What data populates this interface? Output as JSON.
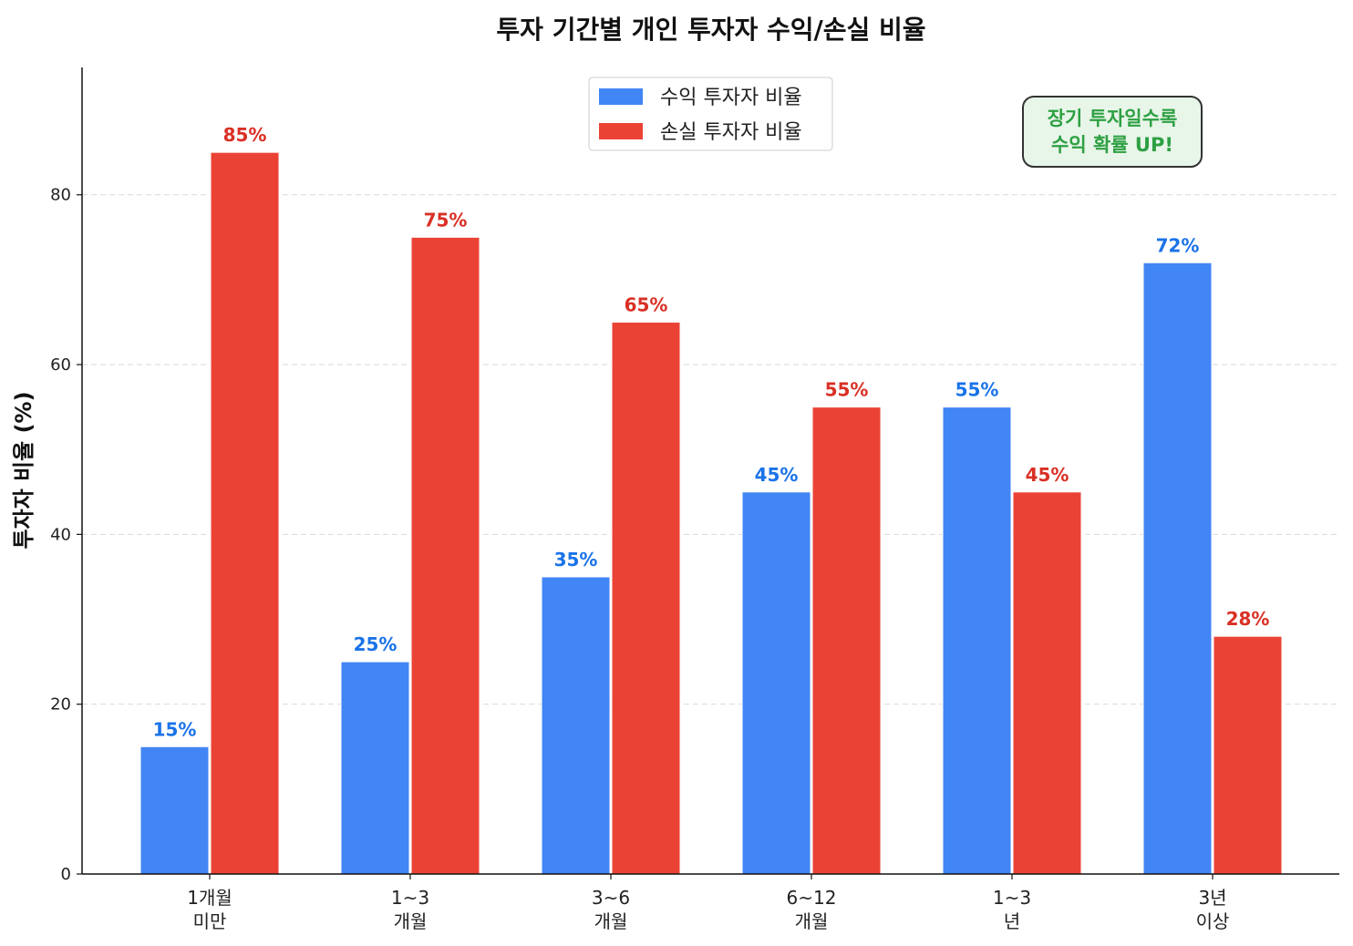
{
  "chart_data": {
    "type": "bar",
    "title": "투자 기간별 개인 투자자 수익/손실 비율",
    "xlabel": "",
    "ylabel": "투자자 비율 (%)",
    "ylim": [
      0,
      95
    ],
    "yticks": [
      0,
      20,
      40,
      60,
      80
    ],
    "grid": "horizontal dashed",
    "legend_position": "top-center",
    "categories": [
      [
        "1개월",
        "미만"
      ],
      [
        "1~3",
        "개월"
      ],
      [
        "3~6",
        "개월"
      ],
      [
        "6~12",
        "개월"
      ],
      [
        "1~3",
        "년"
      ],
      [
        "3년",
        "이상"
      ]
    ],
    "series": [
      {
        "name": "수익 투자자 비율",
        "values": [
          15,
          25,
          35,
          45,
          55,
          72
        ],
        "color": "#4285F4",
        "label_color": "#1A73E8"
      },
      {
        "name": "손실 투자자 비율",
        "values": [
          85,
          75,
          65,
          55,
          45,
          28
        ],
        "color": "#EA4335",
        "label_color": "#D93025"
      }
    ],
    "value_suffix": "%",
    "annotation": {
      "lines": [
        "장기 투자일수록",
        "수익 확률 UP!"
      ],
      "text_color": "#2EA043",
      "bg_color": "#E8F5E9",
      "border_color": "#333333"
    }
  }
}
